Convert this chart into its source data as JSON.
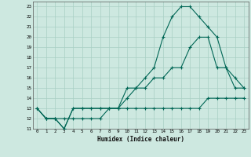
{
  "xlabel": "Humidex (Indice chaleur)",
  "bg_color": "#cde8e0",
  "grid_color": "#a8cfc4",
  "line_color": "#006655",
  "xlim": [
    -0.5,
    23.5
  ],
  "ylim": [
    11,
    23.5
  ],
  "xticks": [
    0,
    1,
    2,
    3,
    4,
    5,
    6,
    7,
    8,
    9,
    10,
    11,
    12,
    13,
    14,
    15,
    16,
    17,
    18,
    19,
    20,
    21,
    22,
    23
  ],
  "yticks": [
    11,
    12,
    13,
    14,
    15,
    16,
    17,
    18,
    19,
    20,
    21,
    22,
    23
  ],
  "line1": {
    "x": [
      0,
      1,
      2,
      3,
      4,
      5,
      6,
      7,
      8,
      9,
      10,
      11,
      12,
      13,
      14,
      15,
      16,
      17,
      18,
      19,
      20,
      21,
      22,
      23
    ],
    "y": [
      13,
      12,
      12,
      12,
      12,
      12,
      12,
      12,
      13,
      13,
      13,
      13,
      13,
      13,
      13,
      13,
      13,
      13,
      13,
      14,
      14,
      14,
      14,
      14
    ]
  },
  "line2": {
    "x": [
      0,
      1,
      2,
      3,
      4,
      5,
      6,
      7,
      8,
      9,
      10,
      11,
      12,
      13,
      14,
      15,
      16,
      17,
      18,
      19,
      20,
      21,
      22,
      23
    ],
    "y": [
      13,
      12,
      12,
      11,
      13,
      13,
      13,
      13,
      13,
      13,
      14,
      15,
      15,
      16,
      16,
      17,
      17,
      19,
      20,
      20,
      17,
      17,
      15,
      15
    ]
  },
  "line3": {
    "x": [
      0,
      1,
      2,
      3,
      4,
      5,
      6,
      7,
      8,
      9,
      10,
      11,
      12,
      13,
      14,
      15,
      16,
      17,
      18,
      19,
      20,
      21,
      22,
      23
    ],
    "y": [
      13,
      12,
      12,
      11,
      13,
      13,
      13,
      13,
      13,
      13,
      15,
      15,
      16,
      17,
      20,
      22,
      23,
      23,
      22,
      21,
      20,
      17,
      16,
      15
    ]
  }
}
